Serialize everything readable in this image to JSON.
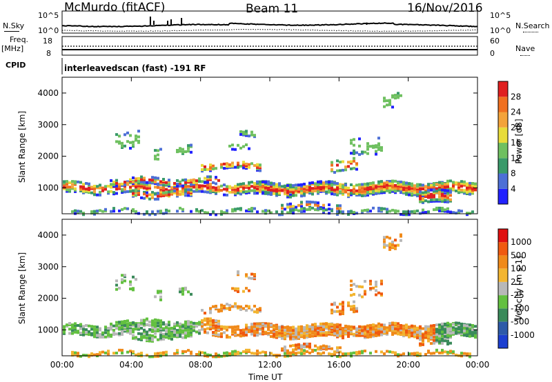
{
  "header": {
    "station": "McMurdo (fitACF)",
    "beam": "Beam 11",
    "date": "16/Nov/2016"
  },
  "noise_panel": {
    "left_label": "N.Sky",
    "left_ticks": [
      "10^5",
      "10^0"
    ],
    "right_label": "N.Search",
    "right_ticks": [
      "10^5",
      "10^0"
    ]
  },
  "freq_panel": {
    "left_label_1": "Freq.",
    "left_label_2": "[MHz]",
    "left_ticks": [
      "18",
      "8"
    ],
    "right_label": "Nave",
    "right_ticks": [
      "60",
      "0"
    ]
  },
  "cpid": {
    "label": "CPID",
    "text": "interleavedscan (fast) -191 RF"
  },
  "x_ticks": [
    "00:00",
    "04:00",
    "08:00",
    "12:00",
    "16:00",
    "20:00",
    "00:00"
  ],
  "x_label": "Time UT",
  "chart_data": [
    {
      "type": "heatmap",
      "ylabel": "Slant Range [km]",
      "y_ticks": [
        1000,
        2000,
        3000,
        4000
      ],
      "ylim": [
        180,
        4500
      ],
      "x_range_hours": [
        0,
        24
      ],
      "colorbar": {
        "label": "Power [dB]",
        "ticks": [
          "28",
          "24",
          "20",
          "16",
          "12",
          "8",
          "4"
        ],
        "colors": [
          "#2222ff",
          "#4d6fd6",
          "#3a9a6a",
          "#6fc060",
          "#e8dc3a",
          "#f3a33a",
          "#f07020",
          "#e02020"
        ]
      }
    },
    {
      "type": "heatmap",
      "ylabel": "Slant Range [km]",
      "y_ticks": [
        1000,
        2000,
        3000,
        4000
      ],
      "ylim": [
        180,
        4500
      ],
      "x_range_hours": [
        0,
        24
      ],
      "colorbar": {
        "label": "Velocity [m s-1]",
        "ticks": [
          "1000",
          "500",
          "100",
          "25",
          "-25",
          "-100",
          "-500",
          "-1000"
        ],
        "colors": [
          "#1c3fd0",
          "#2d5aa8",
          "#3a8a5a",
          "#63c040",
          "#b8b8b8",
          "#f2b530",
          "#f08a1a",
          "#f05a10",
          "#e01010"
        ]
      }
    }
  ]
}
